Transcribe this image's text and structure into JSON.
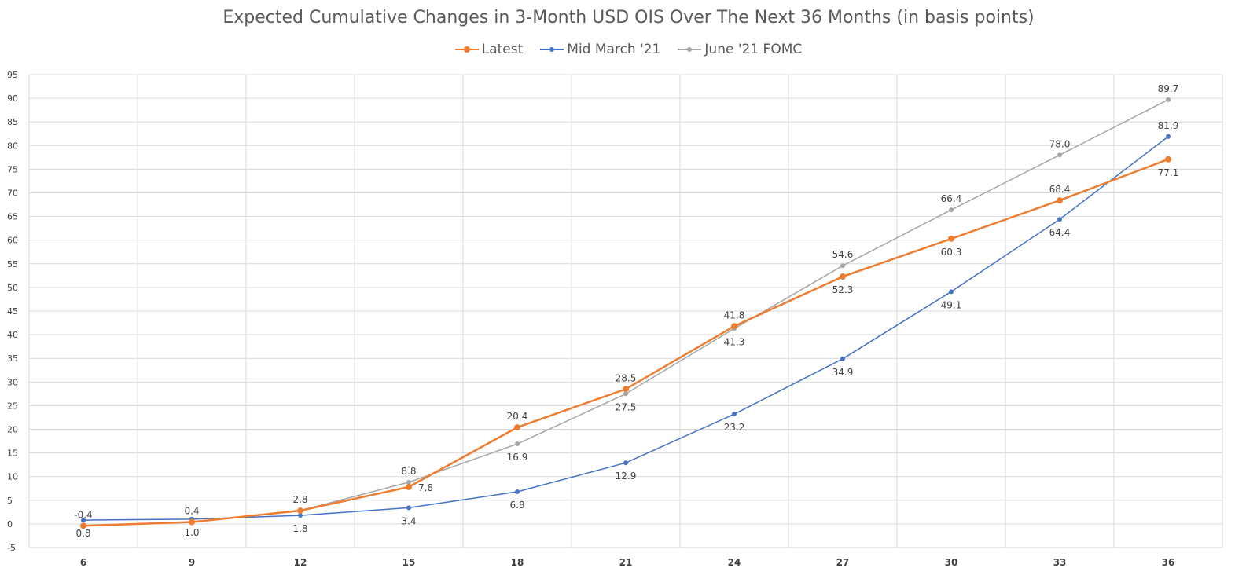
{
  "chart_data": {
    "type": "line",
    "title": "Expected Cumulative Changes in 3-Month USD OIS Over The Next 36 Months (in basis points)",
    "xlabel": "",
    "ylabel": "",
    "categories": [
      "6",
      "9",
      "12",
      "15",
      "18",
      "21",
      "24",
      "27",
      "30",
      "33",
      "36"
    ],
    "ylim": [
      -5,
      95
    ],
    "ytick_step": 5,
    "grid": true,
    "legend_position": "top",
    "series": [
      {
        "name": "Latest",
        "color": "#ED7D31",
        "values": [
          -0.4,
          0.4,
          2.8,
          7.8,
          20.4,
          28.5,
          41.8,
          52.3,
          60.3,
          68.4,
          77.1
        ],
        "labels": [
          "",
          "",
          "",
          "7.8",
          "20.4",
          "28.5",
          "41.8",
          "52.3",
          "60.3",
          "68.4",
          "77.1"
        ],
        "label_pos": [
          "above",
          "above",
          "above",
          "right",
          "above",
          "above",
          "above",
          "below",
          "below",
          "above",
          "below"
        ]
      },
      {
        "name": "Mid March '21",
        "color": "#4472C4",
        "values": [
          0.8,
          1.0,
          1.8,
          3.4,
          6.8,
          12.9,
          23.2,
          34.9,
          49.1,
          64.4,
          81.9
        ],
        "labels": [
          "0.8",
          "1.0",
          "1.8",
          "3.4",
          "6.8",
          "12.9",
          "23.2",
          "34.9",
          "49.1",
          "64.4",
          "81.9"
        ],
        "label_pos": [
          "below",
          "below",
          "below",
          "below",
          "below",
          "below",
          "below",
          "below",
          "below",
          "below",
          "above"
        ]
      },
      {
        "name": "June '21 FOMC",
        "color": "#A5A5A5",
        "values": [
          -0.4,
          0.4,
          2.8,
          8.8,
          16.9,
          27.5,
          41.3,
          54.6,
          66.4,
          78.0,
          89.7
        ],
        "labels": [
          "-0.4",
          "0.4",
          "2.8",
          "8.8",
          "16.9",
          "27.5",
          "41.3",
          "54.6",
          "66.4",
          "78.0",
          "89.7"
        ],
        "label_pos": [
          "above",
          "above",
          "above",
          "above",
          "below",
          "below",
          "below",
          "above",
          "above",
          "above",
          "above"
        ]
      }
    ]
  }
}
